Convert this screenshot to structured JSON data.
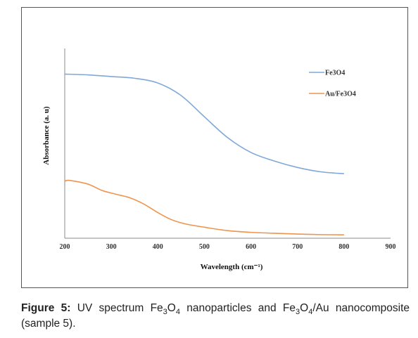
{
  "chart_data": {
    "type": "line",
    "xlabel": "Wavelength (cm⁻¹)",
    "ylabel": "Absorbance (a. u)",
    "xlim": [
      200,
      900
    ],
    "xticks": [
      "200",
      "300",
      "400",
      "500",
      "600",
      "700",
      "800",
      "900"
    ],
    "ylim": [
      0,
      1
    ],
    "grid": false,
    "legend_position": "top-right",
    "series": [
      {
        "name": "Fe3O4",
        "color": "#7fa8d8",
        "x": [
          200,
          250,
          300,
          350,
          400,
          450,
          500,
          550,
          600,
          650,
          700,
          750,
          800
        ],
        "y": [
          0.865,
          0.861,
          0.852,
          0.843,
          0.818,
          0.752,
          0.64,
          0.53,
          0.452,
          0.407,
          0.373,
          0.35,
          0.34
        ]
      },
      {
        "name": "Au/Fe3O4",
        "color": "#f0934d",
        "x": [
          200,
          210,
          250,
          280,
          310,
          340,
          370,
          400,
          430,
          460,
          500,
          550,
          600,
          650,
          700,
          750,
          800
        ],
        "y": [
          0.3,
          0.305,
          0.285,
          0.252,
          0.232,
          0.213,
          0.18,
          0.135,
          0.097,
          0.075,
          0.058,
          0.04,
          0.031,
          0.026,
          0.022,
          0.019,
          0.018
        ]
      }
    ]
  },
  "caption": {
    "label": "Figure 5:",
    "text_part1": " UV spectrum Fe",
    "sub1": "3",
    "text_part2": "O",
    "sub2": "4",
    "text_part3": " nanoparticles and Fe",
    "sub3": "3",
    "text_part4": "O",
    "sub4": "4",
    "text_part5": "/Au nanocomposite (sample 5)."
  }
}
